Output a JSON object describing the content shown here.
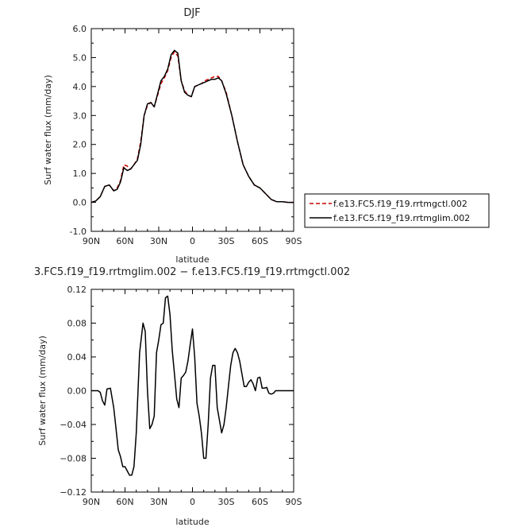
{
  "chart_data": [
    {
      "type": "line",
      "title": "DJF",
      "xlabel": "latitude",
      "ylabel": "Surf water flux (mm/day)",
      "xlim": [
        90,
        -90
      ],
      "ylim": [
        -1.0,
        6.0
      ],
      "x_ticks": [
        90,
        60,
        30,
        0,
        -30,
        -60,
        -90
      ],
      "x_tick_labels": [
        "90N",
        "60N",
        "30N",
        "0",
        "30S",
        "60S",
        "90S"
      ],
      "y_ticks": [
        -1.0,
        0.0,
        1.0,
        2.0,
        3.0,
        4.0,
        5.0,
        6.0
      ],
      "y_tick_labels": [
        "-1.0",
        "0.0",
        "1.0",
        "2.0",
        "3.0",
        "4.0",
        "5.0",
        "6.0"
      ],
      "grid": false,
      "legend_position": "right",
      "series": [
        {
          "name": "f.e13.FC5.f19_f19.rrtmgctl.002",
          "color": "#cc0000",
          "dash": "dashed",
          "x": [
            90,
            86,
            82,
            78,
            74,
            70,
            67,
            64,
            61,
            58,
            55,
            52,
            49,
            46,
            43,
            40,
            37,
            34,
            31,
            28,
            25,
            22,
            19,
            16,
            13,
            10,
            7,
            4,
            1,
            -2,
            -5,
            -8,
            -11,
            -14,
            -17,
            -20,
            -23,
            -26,
            -30,
            -35,
            -40,
            -45,
            -50,
            -55,
            -60,
            -65,
            -70,
            -75,
            -80,
            -85,
            -90
          ],
          "y": [
            0.0,
            0.05,
            0.2,
            0.55,
            0.6,
            0.4,
            0.5,
            0.75,
            1.3,
            1.25,
            1.15,
            1.3,
            1.5,
            2.1,
            3.0,
            3.35,
            3.45,
            3.3,
            3.7,
            4.1,
            4.3,
            4.55,
            5.0,
            5.2,
            5.05,
            4.2,
            3.85,
            3.7,
            3.65,
            4.0,
            4.05,
            4.1,
            4.2,
            4.25,
            4.3,
            4.35,
            4.35,
            4.2,
            3.8,
            3.0,
            2.1,
            1.3,
            0.9,
            0.6,
            0.5,
            0.3,
            0.1,
            0.02,
            0.02,
            0.0,
            0.0
          ]
        },
        {
          "name": "f.e13.FC5.f19_f19.rrtmglim.002",
          "color": "#000000",
          "dash": "solid",
          "x": [
            90,
            86,
            82,
            78,
            74,
            70,
            67,
            64,
            61,
            58,
            55,
            52,
            49,
            46,
            43,
            40,
            37,
            34,
            31,
            28,
            25,
            22,
            19,
            16,
            13,
            10,
            7,
            4,
            1,
            -2,
            -5,
            -8,
            -11,
            -14,
            -17,
            -20,
            -23,
            -26,
            -30,
            -35,
            -40,
            -45,
            -50,
            -55,
            -60,
            -65,
            -70,
            -75,
            -80,
            -85,
            -90
          ],
          "y": [
            0.0,
            0.05,
            0.2,
            0.55,
            0.6,
            0.4,
            0.45,
            0.7,
            1.2,
            1.1,
            1.15,
            1.3,
            1.45,
            2.0,
            3.0,
            3.4,
            3.45,
            3.3,
            3.75,
            4.2,
            4.35,
            4.6,
            5.1,
            5.25,
            5.15,
            4.2,
            3.8,
            3.7,
            3.65,
            4.0,
            4.05,
            4.1,
            4.15,
            4.2,
            4.25,
            4.25,
            4.3,
            4.2,
            3.75,
            3.0,
            2.1,
            1.3,
            0.9,
            0.6,
            0.5,
            0.3,
            0.1,
            0.02,
            0.02,
            0.0,
            0.0
          ]
        }
      ]
    },
    {
      "type": "line",
      "title": "3.FC5.f19_f19.rrtmglim.002 − f.e13.FC5.f19_f19.rrtmgctl.002",
      "xlabel": "latitude",
      "ylabel": "Surf water flux (mm/day)",
      "xlim": [
        90,
        -90
      ],
      "ylim": [
        -0.12,
        0.12
      ],
      "x_ticks": [
        90,
        60,
        30,
        0,
        -30,
        -60,
        -90
      ],
      "x_tick_labels": [
        "90N",
        "60N",
        "30N",
        "0",
        "30S",
        "60S",
        "90S"
      ],
      "y_ticks": [
        -0.12,
        -0.08,
        -0.04,
        0.0,
        0.04,
        0.08,
        0.12
      ],
      "y_tick_labels": [
        "−0.12",
        "−0.08",
        "−0.04",
        "0.00",
        "0.04",
        "0.08",
        "0.12"
      ],
      "grid": false,
      "series": [
        {
          "name": "",
          "color": "#000000",
          "dash": "solid",
          "x": [
            90,
            87,
            84,
            82,
            80,
            78,
            76,
            73,
            70,
            68,
            66,
            64,
            62,
            60,
            58,
            56,
            54,
            52,
            50,
            47,
            44,
            42,
            40,
            38,
            36,
            34,
            32,
            30,
            28,
            26,
            24,
            22,
            20,
            18,
            16,
            14,
            12,
            10,
            8,
            6,
            4,
            2,
            0,
            -2,
            -4,
            -6,
            -8,
            -10,
            -12,
            -14,
            -16,
            -18,
            -20,
            -22,
            -24,
            -26,
            -28,
            -30,
            -32,
            -34,
            -36,
            -38,
            -40,
            -42,
            -44,
            -46,
            -48,
            -50,
            -52,
            -54,
            -56,
            -58,
            -60,
            -62,
            -64,
            -66,
            -68,
            -70,
            -72,
            -74,
            -76,
            -78,
            -80,
            -83,
            -86,
            -88,
            -90
          ],
          "y": [
            0.0,
            0.0,
            0.0,
            -0.002,
            -0.012,
            -0.017,
            0.002,
            0.003,
            -0.02,
            -0.045,
            -0.07,
            -0.078,
            -0.09,
            -0.09,
            -0.095,
            -0.1,
            -0.1,
            -0.09,
            -0.05,
            0.045,
            0.08,
            0.07,
            0.0,
            -0.045,
            -0.04,
            -0.03,
            0.045,
            0.06,
            0.078,
            0.08,
            0.11,
            0.112,
            0.09,
            0.048,
            0.02,
            -0.01,
            -0.02,
            0.015,
            0.018,
            0.022,
            0.035,
            0.055,
            0.073,
            0.04,
            -0.015,
            -0.03,
            -0.05,
            -0.08,
            -0.08,
            -0.04,
            0.015,
            0.03,
            0.03,
            -0.02,
            -0.035,
            -0.05,
            -0.04,
            -0.02,
            0.005,
            0.03,
            0.045,
            0.05,
            0.045,
            0.035,
            0.02,
            0.005,
            0.005,
            0.01,
            0.013,
            0.008,
            0.0,
            0.015,
            0.016,
            0.003,
            0.003,
            0.004,
            -0.003,
            -0.004,
            -0.003,
            0.0,
            0.0,
            0.0,
            0.0,
            0.0,
            0.0,
            0.0,
            0.0
          ]
        }
      ]
    }
  ]
}
